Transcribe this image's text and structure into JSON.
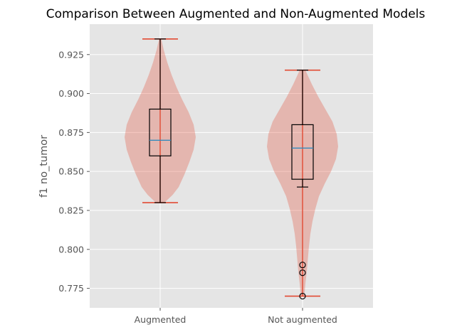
{
  "chart_data": {
    "type": "violin",
    "title": "Comparison Between Augmented and Non-Augmented Models",
    "xlabel": "",
    "ylabel": "f1 no_tumor",
    "ylim": [
      0.7625,
      0.9445
    ],
    "grid": true,
    "categories": [
      "Augmented",
      "Not augmented"
    ],
    "yticks": [
      0.775,
      0.8,
      0.825,
      0.85,
      0.875,
      0.9,
      0.925
    ],
    "ytick_labels": [
      "0.775",
      "0.800",
      "0.825",
      "0.850",
      "0.875",
      "0.900",
      "0.925"
    ],
    "groups": [
      {
        "category": "Augmented",
        "min": 0.83,
        "max": 0.935,
        "q1": 0.86,
        "median": 0.87,
        "q3": 0.89,
        "whisker_low": 0.83,
        "whisker_high": 0.935,
        "outliers": [],
        "density": [
          [
            0.83,
            0.12
          ],
          [
            0.835,
            0.35
          ],
          [
            0.84,
            0.52
          ],
          [
            0.848,
            0.68
          ],
          [
            0.856,
            0.82
          ],
          [
            0.864,
            0.94
          ],
          [
            0.872,
            1.0
          ],
          [
            0.88,
            0.94
          ],
          [
            0.888,
            0.8
          ],
          [
            0.896,
            0.62
          ],
          [
            0.904,
            0.46
          ],
          [
            0.912,
            0.32
          ],
          [
            0.92,
            0.2
          ],
          [
            0.928,
            0.1
          ],
          [
            0.935,
            0.03
          ]
        ]
      },
      {
        "category": "Not augmented",
        "min": 0.77,
        "max": 0.915,
        "q1": 0.845,
        "median": 0.865,
        "q3": 0.88,
        "whisker_low": 0.84,
        "whisker_high": 0.915,
        "outliers": [
          0.79,
          0.785,
          0.77
        ],
        "density": [
          [
            0.77,
            0.05
          ],
          [
            0.778,
            0.08
          ],
          [
            0.786,
            0.12
          ],
          [
            0.794,
            0.15
          ],
          [
            0.802,
            0.18
          ],
          [
            0.81,
            0.22
          ],
          [
            0.818,
            0.28
          ],
          [
            0.826,
            0.36
          ],
          [
            0.834,
            0.46
          ],
          [
            0.842,
            0.62
          ],
          [
            0.85,
            0.8
          ],
          [
            0.858,
            0.94
          ],
          [
            0.866,
            1.0
          ],
          [
            0.874,
            0.96
          ],
          [
            0.882,
            0.84
          ],
          [
            0.89,
            0.64
          ],
          [
            0.898,
            0.44
          ],
          [
            0.906,
            0.26
          ],
          [
            0.915,
            0.08
          ]
        ]
      }
    ]
  },
  "colors": {
    "plot_background": "#e5e5e5",
    "grid": "#ffffff",
    "violin_fill": "#e24a33",
    "extrema_line": "#e24a33",
    "box_edge": "#000000",
    "median_line": "#348abd",
    "tick_text": "#555555"
  }
}
